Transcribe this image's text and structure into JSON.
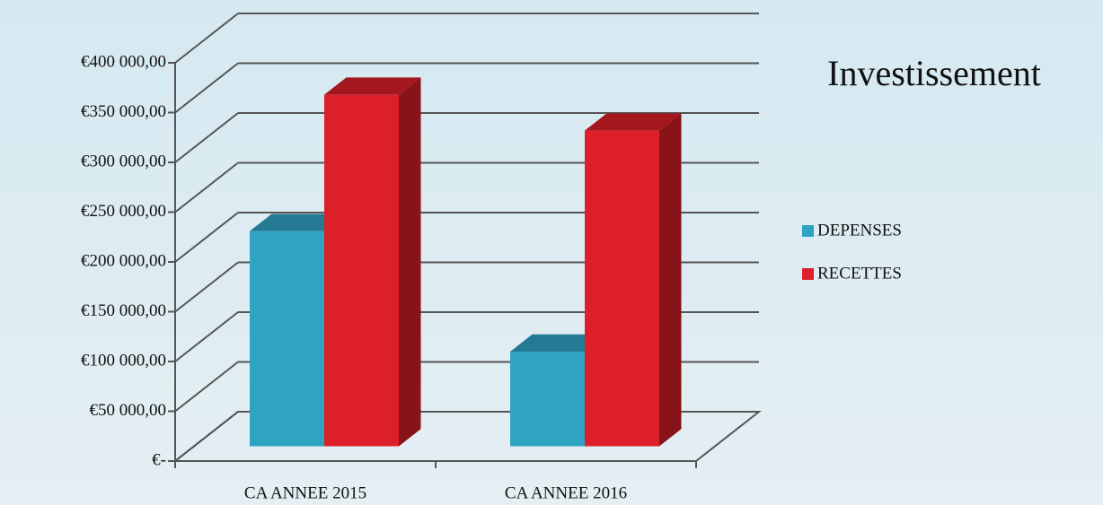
{
  "chart_data": {
    "type": "bar3d",
    "title": "Investissement",
    "categories": [
      "CA ANNEE 2015",
      "CA ANNEE 2016"
    ],
    "series": [
      {
        "name": "DEPENSES",
        "color": "#2ea3c2",
        "values": [
          216000,
          95000
        ]
      },
      {
        "name": "RECETTES",
        "color": "#dc1f28",
        "values": [
          353000,
          317000
        ]
      }
    ],
    "ylim": [
      0,
      400000
    ],
    "yticks": [
      {
        "value": 0,
        "label": "€-"
      },
      {
        "value": 50000,
        "label": "€50 000,00"
      },
      {
        "value": 100000,
        "label": "€100 000,00"
      },
      {
        "value": 150000,
        "label": "€150 000,00"
      },
      {
        "value": 200000,
        "label": "€200 000,00"
      },
      {
        "value": 250000,
        "label": "€250 000,00"
      },
      {
        "value": 300000,
        "label": "€300 000,00"
      },
      {
        "value": 350000,
        "label": "€350 000,00"
      },
      {
        "value": 400000,
        "label": "€400 000,00"
      }
    ],
    "grid": true,
    "legend": "right"
  }
}
